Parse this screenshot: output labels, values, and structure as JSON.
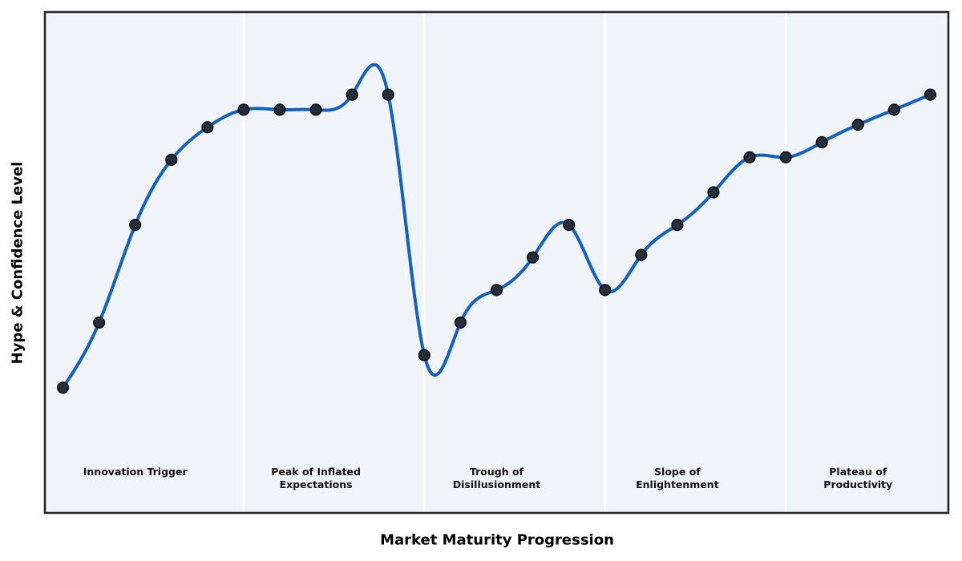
{
  "chart_data": {
    "type": "line",
    "title": "",
    "xlabel": "Market Maturity Progression",
    "ylabel": "Hype & Confidence Level",
    "x": [
      0,
      1,
      2,
      3,
      4,
      5,
      6,
      7,
      8,
      9,
      10,
      11,
      12,
      13,
      14,
      15,
      16,
      17,
      18,
      19,
      20,
      21,
      22,
      23,
      24
    ],
    "y": [
      25,
      38,
      57.5,
      70.5,
      77,
      80.5,
      80.5,
      80.5,
      83.5,
      83.5,
      31.5,
      38,
      44.5,
      51,
      57.5,
      44.5,
      51.5,
      57.5,
      64,
      71,
      71,
      74,
      77.5,
      80.5,
      83.5
    ],
    "xlim": [
      -0.5,
      24.5
    ],
    "ylim": [
      0,
      100
    ],
    "grid": false,
    "legend": false,
    "ticks": "none",
    "smoothing": "cubic-spline",
    "marker": "circle",
    "phases": [
      {
        "label": "Innovation Trigger",
        "center_x": 2
      },
      {
        "label": "Peak of Inflated\nExpectations",
        "center_x": 7
      },
      {
        "label": "Trough of\nDisillusionment",
        "center_x": 12
      },
      {
        "label": "Slope of\nEnlightenment",
        "center_x": 17
      },
      {
        "label": "Plateau of\nProductivity",
        "center_x": 22
      }
    ],
    "phase_boundaries_x": [
      5,
      10,
      15,
      20
    ],
    "colors": {
      "line": "#1160c2",
      "marker_fill": "#262e3a",
      "marker_edge": "#101418",
      "plot_background": "#f0f4f8",
      "separator": "#ffffff",
      "border": "#26282b",
      "phase_label_text": "#111111",
      "axis_label_text": "#000000",
      "figure_background": "#ffffff"
    }
  }
}
